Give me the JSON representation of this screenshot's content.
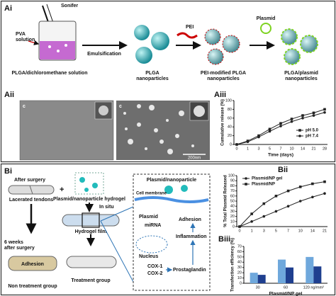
{
  "panel_a": {
    "label_i": "Ai",
    "sonifer": "Sonifer",
    "pva": "PVA solution",
    "emulsification": "Emulsification",
    "plga_dcm": "PLGA/dichloromethane solution",
    "plga_np": "PLGA nanoparticles",
    "pei": "PEI",
    "plasmid": "Plasmid",
    "pei_np": "PEI-modified PLGA nanoparticles",
    "plasmid_np": "PLGA/plasmid nanoparticles",
    "label_ii": "Aii",
    "img1_letter": "c",
    "img2_letter": "c",
    "scale": "200nm",
    "label_iii": "Aiii"
  },
  "panel_b": {
    "label_i": "Bi",
    "after_surgery": "After surgery",
    "lacerated": "Lacerated tendons",
    "hydrogel": "Plasmid/nanoparticle hydrogel",
    "in_situ": "In situ",
    "film": "Hydrogel film",
    "six_weeks": "6 weeks after surgery",
    "adhesion": "Adhesion",
    "non_treatment": "Non treatment group",
    "treatment": "Treatment group",
    "inset_title": "Plasmid/nanoparticle",
    "membrane": "Cell membrane",
    "plasmid": "Plasmid",
    "mirna": "miRNA",
    "adhesion2": "Adhesion",
    "nucleus": "Nucleus",
    "inflammation": "Inflammation",
    "cox1": "COX-1",
    "cox2": "COX-2",
    "prostaglandin": "Prostaglandin",
    "label_ii": "Bii",
    "label_iii": "Biii"
  },
  "chart_data": [
    {
      "type": "line",
      "xlabel": "Time (days)",
      "ylabel": "Cumulative release (%)",
      "categories": [
        "0",
        "1",
        "3",
        "5",
        "7",
        "10",
        "14",
        "21",
        "28"
      ],
      "ylim": [
        0,
        100
      ],
      "yticks": [
        0,
        20,
        40,
        60,
        80,
        100
      ],
      "legend": "lower right",
      "series": [
        {
          "name": "pH 5.0",
          "color": "#222222",
          "marker": "square",
          "values": [
            0,
            8,
            20,
            35,
            48,
            58,
            66,
            72,
            80
          ]
        },
        {
          "name": "pH 7.4",
          "color": "#222222",
          "marker": "circle",
          "values": [
            0,
            6,
            17,
            30,
            42,
            52,
            60,
            66,
            73
          ]
        }
      ]
    },
    {
      "type": "line",
      "ylabel": "% Total Plasmid Released",
      "categories": [
        "0",
        "1",
        "3",
        "5",
        "7",
        "10",
        "14",
        "21"
      ],
      "ylim": [
        0,
        100
      ],
      "yticks": [
        0,
        10,
        20,
        30,
        40,
        50,
        60,
        70,
        80,
        90,
        100
      ],
      "legend": "upper left",
      "series": [
        {
          "name": "Plasmid/NP gel",
          "color": "#222222",
          "marker": "circle",
          "values": [
            0,
            10,
            20,
            30,
            40,
            50,
            58,
            65
          ]
        },
        {
          "name": "Plasmid/NP",
          "color": "#222222",
          "marker": "square",
          "values": [
            0,
            25,
            45,
            60,
            70,
            78,
            84,
            88
          ]
        }
      ]
    },
    {
      "type": "bar",
      "ylabel": "Transfection efficiency (%)",
      "xlabel": "Plasmid/NP gel",
      "categories": [
        "30",
        "60",
        "120 ng/mm²"
      ],
      "ylim": [
        0,
        70
      ],
      "yticks": [
        0,
        10,
        20,
        30,
        40,
        50,
        60,
        70
      ],
      "series": [
        {
          "color": "#6fa8dc",
          "values": [
            20,
            45,
            50
          ]
        },
        {
          "color": "#1f3f8f",
          "values": [
            16,
            30,
            32
          ]
        }
      ]
    }
  ]
}
